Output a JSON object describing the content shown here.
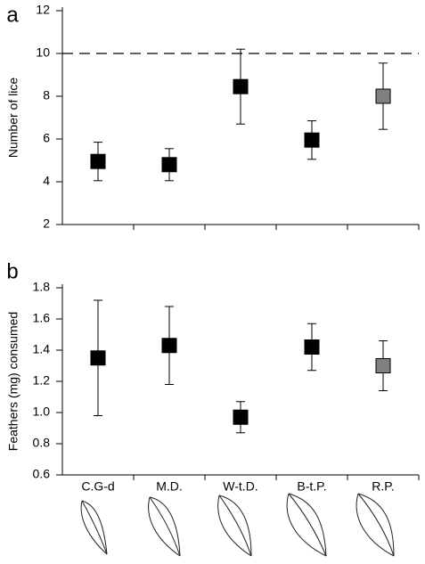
{
  "chart_data": [
    {
      "type": "errorbar",
      "label": "a",
      "ylabel": "Number of lice",
      "categories": [
        null,
        null,
        null,
        null,
        null
      ],
      "series": [
        {
          "values": [
            4.95,
            4.8,
            8.45,
            5.95,
            8.0
          ],
          "errors": [
            0.9,
            0.75,
            1.75,
            0.9,
            1.55
          ],
          "colors": [
            "#000000",
            "#000000",
            "#000000",
            "#000000",
            "#808080"
          ]
        }
      ],
      "ylim": [
        2,
        12
      ],
      "yticks": [
        2,
        4,
        6,
        8,
        10,
        12
      ],
      "hline": 10
    },
    {
      "type": "errorbar",
      "label": "b",
      "ylabel": "Feathers (mg) consumed",
      "categories": [
        "C.G-d",
        "M.D.",
        "W-t.D.",
        "B-t.P.",
        "R.P."
      ],
      "series": [
        {
          "values": [
            1.35,
            1.43,
            0.97,
            1.42,
            1.3
          ],
          "errors": [
            0.37,
            0.25,
            0.1,
            0.15,
            0.16
          ],
          "colors": [
            "#000000",
            "#000000",
            "#000000",
            "#000000",
            "#808080"
          ]
        }
      ],
      "ylim": [
        0.6,
        1.8
      ],
      "yticks": [
        0.6,
        0.8,
        {
          "value": 1,
          "label": "1.0"
        },
        1.2,
        1.4,
        1.6,
        1.8
      ]
    }
  ]
}
